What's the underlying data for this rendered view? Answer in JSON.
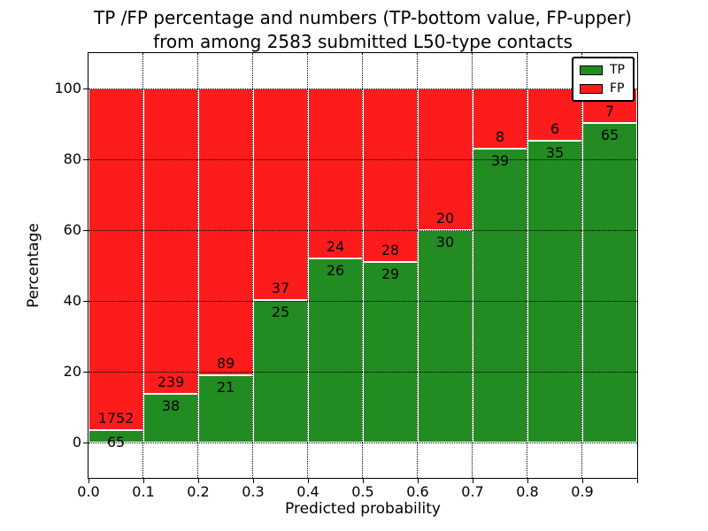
{
  "chart_data": {
    "type": "bar",
    "stacked": true,
    "percentage_normalized": true,
    "title_line1": "TP /FP percentage and numbers (TP-bottom value, FP-upper)",
    "title_line2": "from among 2583 submitted L50-type contacts",
    "xlabel": "Predicted probability",
    "ylabel": "Percentage",
    "total_contacts": 2583,
    "x_tick_labels": [
      "0.0",
      "0.1",
      "0.2",
      "0.3",
      "0.4",
      "0.5",
      "0.6",
      "0.7",
      "0.8",
      "0.9"
    ],
    "y_tick_labels": [
      "0",
      "20",
      "40",
      "60",
      "80",
      "100"
    ],
    "y_tick_values": [
      0,
      20,
      40,
      60,
      80,
      100
    ],
    "xlim": [
      0.0,
      1.0
    ],
    "ylim": [
      -10,
      110
    ],
    "bar_bin_width": 0.1,
    "categories": [
      "0.0-0.1",
      "0.1-0.2",
      "0.2-0.3",
      "0.3-0.4",
      "0.4-0.5",
      "0.5-0.6",
      "0.6-0.7",
      "0.7-0.8",
      "0.8-0.9",
      "0.9-1.0"
    ],
    "series": [
      {
        "name": "TP",
        "color": "#228b22",
        "values": [
          65,
          38,
          21,
          25,
          26,
          29,
          30,
          39,
          35,
          65
        ]
      },
      {
        "name": "FP",
        "color": "#fc1c1c",
        "values": [
          1752,
          239,
          89,
          37,
          24,
          28,
          20,
          8,
          6,
          7
        ]
      }
    ],
    "legend": {
      "position": "upper right",
      "entries": [
        {
          "label": "TP",
          "color": "#228b22"
        },
        {
          "label": "FP",
          "color": "#fc1c1c"
        }
      ]
    },
    "grid": {
      "style": "dotted",
      "color": "#000000"
    },
    "bar_edge_color": "#ffffff",
    "background_color": "#ffffff",
    "text_color": "#000000"
  }
}
